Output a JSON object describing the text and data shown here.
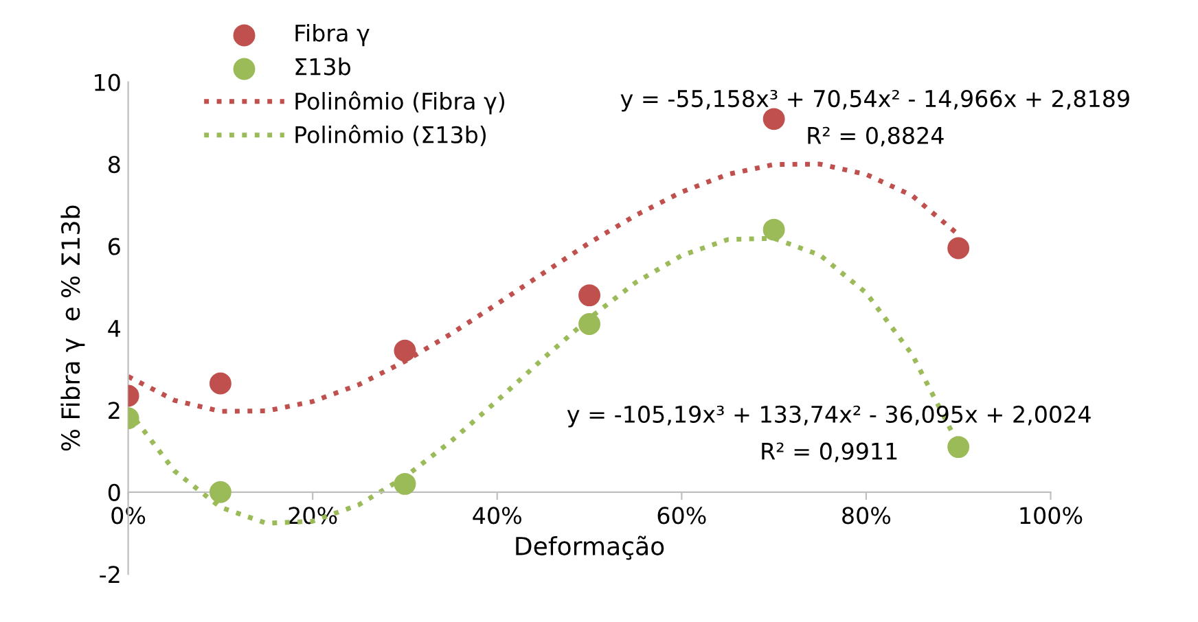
{
  "chart_data": {
    "type": "scatter",
    "xlabel": "Deformação",
    "ylabel": "% Fibra γ  e % Σ13b",
    "xlim": [
      0,
      1
    ],
    "xticks": [
      {
        "value": 0,
        "label": "0%"
      },
      {
        "value": 0.2,
        "label": "20%"
      },
      {
        "value": 0.4,
        "label": "40%"
      },
      {
        "value": 0.6,
        "label": "60%"
      },
      {
        "value": 0.8,
        "label": "80%"
      },
      {
        "value": 1,
        "label": "100%"
      }
    ],
    "ylim": [
      -2,
      10
    ],
    "yticks": [
      -2,
      0,
      2,
      4,
      6,
      8,
      10
    ],
    "grid": false,
    "legend": "top left",
    "series": [
      {
        "name": "Fibra γ",
        "marker": "circle",
        "color": "#c0504d",
        "x": [
          0,
          0.1,
          0.3,
          0.5,
          0.7,
          0.9
        ],
        "values": [
          2.35,
          2.65,
          3.45,
          4.8,
          9.1,
          5.95
        ]
      },
      {
        "name": "Σ13b",
        "marker": "circle",
        "color": "#9bbb59",
        "x": [
          0,
          0.1,
          0.3,
          0.5,
          0.7,
          0.9
        ],
        "values": [
          1.8,
          0.0,
          0.2,
          4.1,
          6.4,
          1.1
        ]
      },
      {
        "name": "Polinômio (Fibra γ)",
        "type": "line",
        "line_style": "dotted",
        "color": "#c0504d",
        "x": [
          0,
          0.05,
          0.1,
          0.15,
          0.2,
          0.25,
          0.3,
          0.35,
          0.4,
          0.45,
          0.5,
          0.55,
          0.6,
          0.65,
          0.7,
          0.75,
          0.8,
          0.85,
          0.9
        ],
        "values": [
          2.82,
          2.24,
          1.97,
          1.98,
          2.21,
          2.62,
          3.19,
          3.86,
          4.59,
          5.34,
          6.08,
          6.75,
          7.32,
          7.75,
          7.99,
          8.0,
          7.75,
          7.23,
          6.28
        ]
      },
      {
        "name": "Polinômio (Σ13b)",
        "type": "line",
        "line_style": "dotted",
        "color": "#9bbb59",
        "x": [
          0,
          0.05,
          0.1,
          0.15,
          0.2,
          0.25,
          0.3,
          0.35,
          0.4,
          0.45,
          0.5,
          0.55,
          0.6,
          0.65,
          0.7,
          0.75,
          0.8,
          0.85,
          0.9
        ],
        "values": [
          2.0,
          0.52,
          -0.37,
          -0.76,
          -0.71,
          -0.31,
          0.37,
          1.24,
          2.23,
          3.26,
          4.24,
          5.11,
          5.77,
          6.16,
          6.19,
          5.78,
          4.86,
          3.35,
          1.16
        ]
      }
    ],
    "annotations": [
      "y = -55,158x³ + 70,54x² - 14,966x + 2,8189",
      "R² = 0,8824",
      "y = -105,19x³ + 133,74x² - 36,095x + 2,0024",
      "R² = 0,9911"
    ]
  }
}
